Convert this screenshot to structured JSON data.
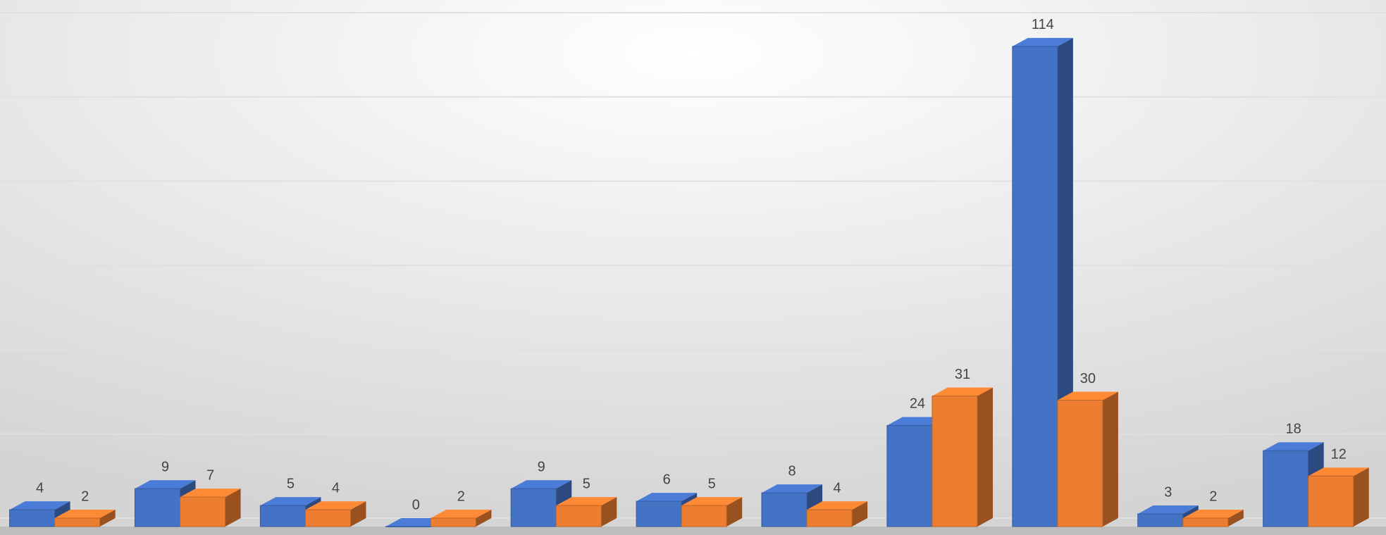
{
  "chart_data": {
    "type": "bar3d",
    "categories": [
      null,
      null,
      null,
      null,
      null,
      null,
      null,
      null,
      null,
      null,
      null
    ],
    "series": [
      {
        "color": "#4472c4",
        "values": [
          4,
          9,
          5,
          0,
          9,
          6,
          8,
          24,
          114,
          3,
          18
        ]
      },
      {
        "color": "#ed7d31",
        "values": [
          2,
          7,
          4,
          2,
          5,
          5,
          4,
          31,
          30,
          2,
          12
        ]
      }
    ],
    "ylim": [
      0,
      120
    ],
    "yticks": [
      0,
      20,
      40,
      60,
      80,
      100,
      120
    ],
    "grid": true
  }
}
